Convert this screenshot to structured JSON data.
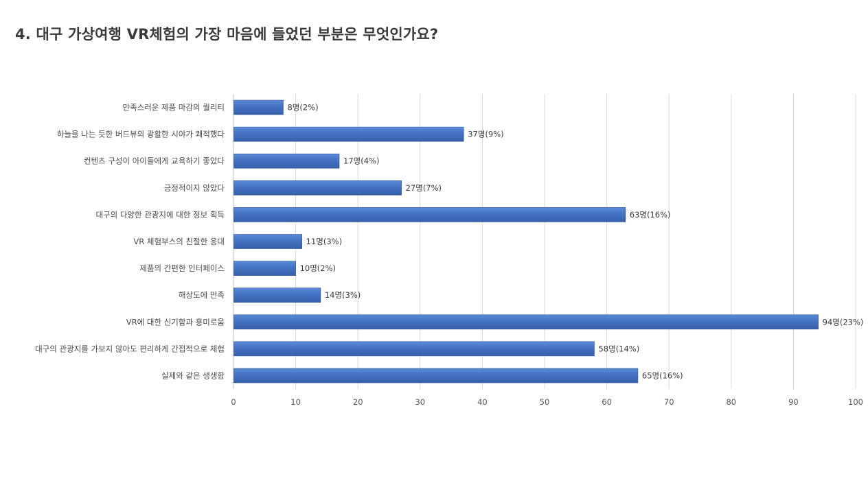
{
  "title": "4. 대구 가상여행 VR체험의 가장 마음에 들었던 부분은 무엇인가요?",
  "colors": {
    "bar": "#4472c4",
    "bar_dark": "#2f5597",
    "grid": "#d9d9d9",
    "axis": "#bfbfbf"
  },
  "chart_data": {
    "type": "bar",
    "orientation": "horizontal",
    "title": "4. 대구 가상여행 VR체험의 가장 마음에 들었던 부분은 무엇인가요?",
    "categories": [
      "만족스러운 제품 마감의 퀄리티",
      "하늘을 나는 듯한 버드뷰의 광활한 시야가 쾌적했다",
      "컨텐츠 구성이 아이들에게 교육하기 좋았다",
      "긍정적이지 않았다",
      "대구의 다양한 관광지에 대한 정보 획득",
      "VR 체험부스의 친절한 응대",
      "제품의 간편한 인터페이스",
      "해상도에 만족",
      "VR에 대한 신기함과 흥미로움",
      "대구의 관광지를 가보지 않아도 편리하게 간접적으로 체험",
      "실제와 같은 생생함"
    ],
    "values": [
      8,
      37,
      17,
      27,
      63,
      11,
      10,
      14,
      94,
      58,
      65
    ],
    "data_labels": [
      "8명(2%)",
      "37명(9%)",
      "17명(4%)",
      "27명(7%)",
      "63명(16%)",
      "11명(3%)",
      "10명(2%)",
      "14명(3%)",
      "94명(23%)",
      "58명(14%)",
      "65명(16%)"
    ],
    "xlim": [
      0,
      100
    ],
    "xticks": [
      0,
      10,
      20,
      30,
      40,
      50,
      60,
      70,
      80,
      90,
      100
    ],
    "grid": true,
    "legend": "none"
  }
}
